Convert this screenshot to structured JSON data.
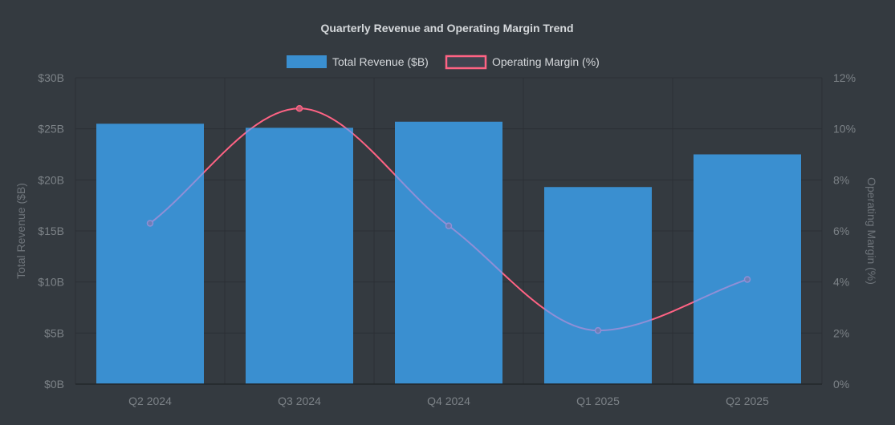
{
  "chart_data": {
    "type": "bar",
    "title": "Quarterly Revenue and Operating Margin Trend",
    "categories": [
      "Q2 2024",
      "Q3 2024",
      "Q4 2024",
      "Q1 2025",
      "Q2 2025"
    ],
    "series": [
      {
        "name": "Total Revenue ($B)",
        "type": "bar",
        "axis": "left",
        "values": [
          25.5,
          25.1,
          25.7,
          19.3,
          22.5
        ],
        "color": "#3a8fd0"
      },
      {
        "name": "Operating Margin (%)",
        "type": "line",
        "axis": "right",
        "values": [
          6.3,
          10.8,
          6.2,
          2.1,
          4.1
        ],
        "color": "#ff6384"
      }
    ],
    "y_left": {
      "label": "Total Revenue ($B)",
      "ylim": [
        0,
        30
      ],
      "ticks": [
        "$0B",
        "$5B",
        "$10B",
        "$15B",
        "$20B",
        "$25B",
        "$30B"
      ]
    },
    "y_right": {
      "label": "Operating Margin (%)",
      "ylim": [
        0,
        12
      ],
      "ticks": [
        "0%",
        "2%",
        "4%",
        "6%",
        "8%",
        "10%",
        "12%"
      ]
    },
    "grid": true,
    "legend_position": "top-center"
  },
  "colors": {
    "background": "#343a40",
    "grid": "#2b3036",
    "tick_text": "#7c8287",
    "title_text": "#d5d8db",
    "legend_text": "#d5d8db",
    "line_behind_bar": "#8f8fd6"
  }
}
